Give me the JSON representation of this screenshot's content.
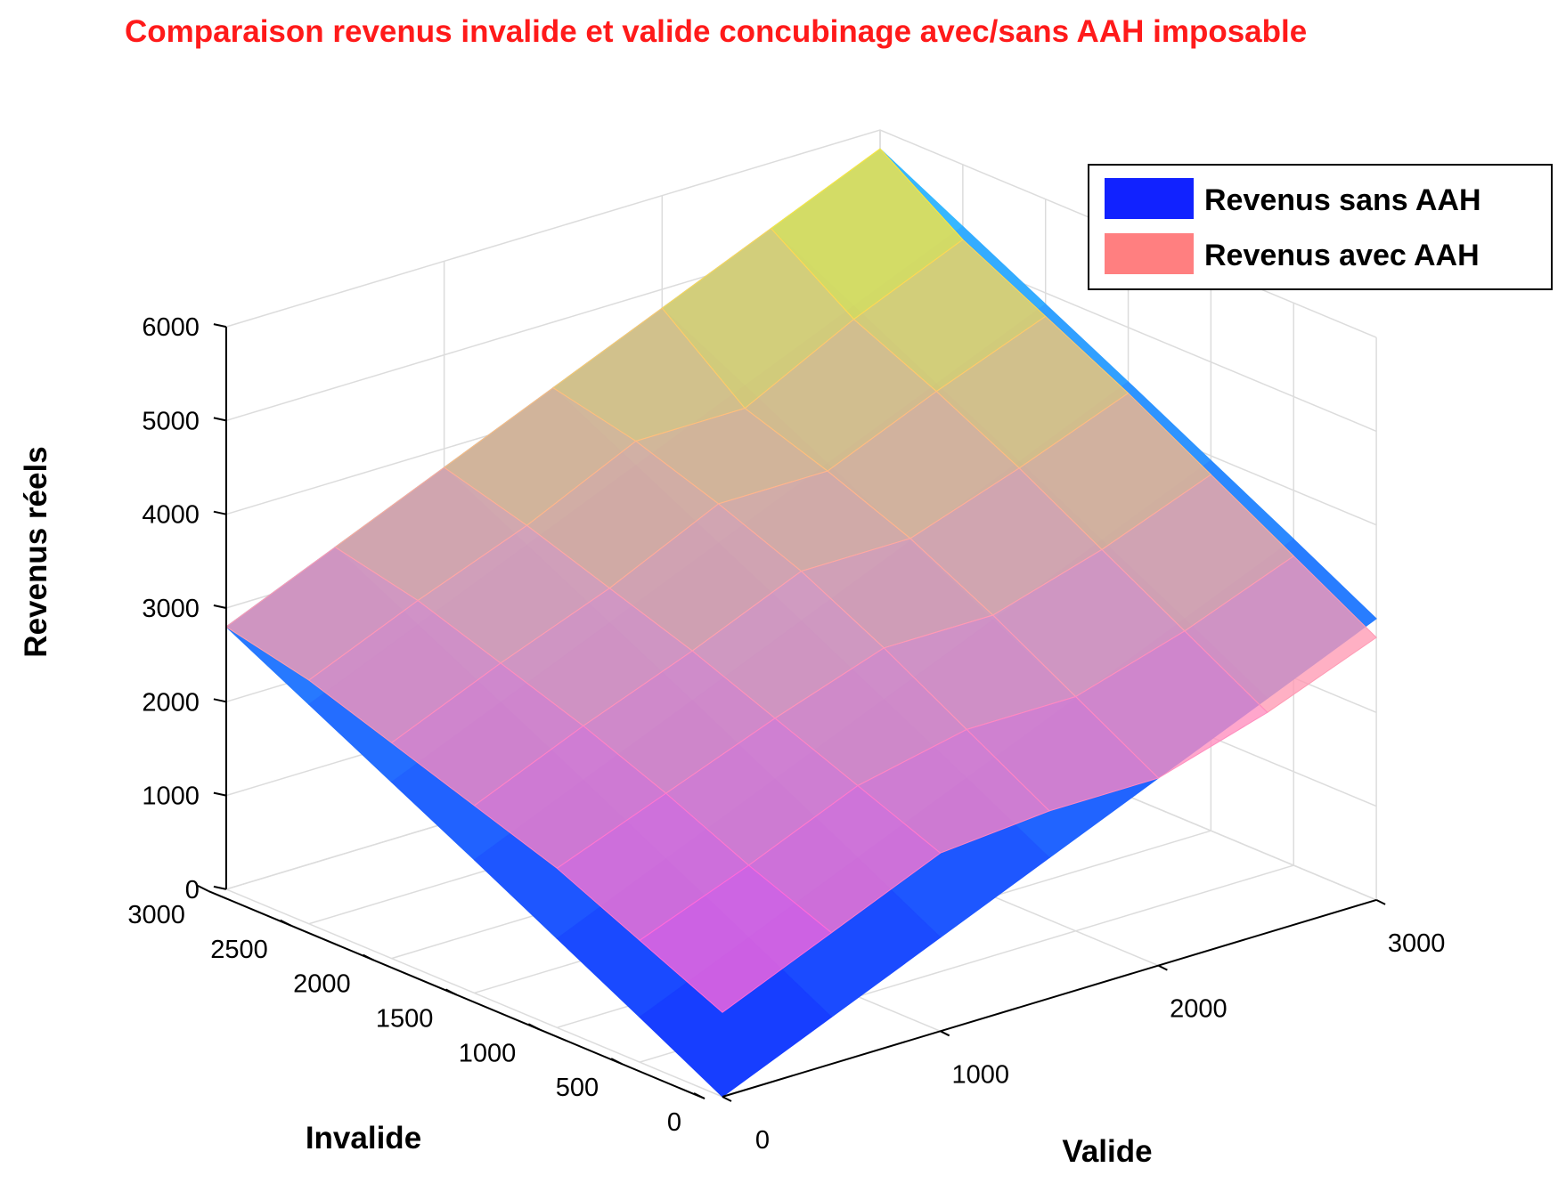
{
  "chart_data": {
    "type": "surface3d",
    "title": "Comparaison revenus invalide et valide concubinage avec/sans AAH imposable",
    "xlabel": "Valide",
    "ylabel": "Invalide",
    "zlabel": "Revenus réels",
    "xlim": [
      0,
      3000
    ],
    "ylim": [
      0,
      3000
    ],
    "zlim": [
      0,
      6000
    ],
    "x_ticks": [
      "0",
      "1000",
      "2000",
      "3000"
    ],
    "y_ticks": [
      "0",
      "500",
      "1000",
      "1500",
      "2000",
      "2500",
      "3000"
    ],
    "z_ticks": [
      "0",
      "1000",
      "2000",
      "3000",
      "4000",
      "5000",
      "6000"
    ],
    "grid": true,
    "legend_position": "top-right",
    "valide": [
      0,
      500,
      1000,
      1500,
      2000,
      2500,
      3000
    ],
    "invalide": [
      0,
      500,
      1000,
      1500,
      2000,
      2500,
      3000
    ],
    "series": [
      {
        "name": "Revenus sans AAH",
        "color": "#1122ff",
        "z": [
          [
            0,
            500,
            1000,
            1500,
            2000,
            2500,
            3000
          ],
          [
            480,
            980,
            1480,
            1980,
            2480,
            2980,
            3480
          ],
          [
            950,
            1450,
            1950,
            2450,
            2950,
            3450,
            3950
          ],
          [
            1420,
            1920,
            2420,
            2920,
            3420,
            3920,
            4420
          ],
          [
            1880,
            2380,
            2880,
            3380,
            3880,
            4380,
            4880
          ],
          [
            2340,
            2840,
            3340,
            3840,
            4340,
            4840,
            5340
          ],
          [
            2800,
            3300,
            3800,
            4300,
            4800,
            5300,
            5800
          ]
        ]
      },
      {
        "name": "Revenus avec AAH",
        "color": "#ff7f80",
        "z": [
          [
            900,
            1400,
            1900,
            2000,
            2000,
            2350,
            2800
          ],
          [
            1300,
            1750,
            2250,
            2500,
            2500,
            2850,
            3300
          ],
          [
            1700,
            2150,
            2600,
            3000,
            3000,
            3350,
            3800
          ],
          [
            2000,
            2500,
            2950,
            3450,
            3450,
            3850,
            4300
          ],
          [
            2300,
            2800,
            3250,
            3800,
            3800,
            4300,
            4750
          ],
          [
            2600,
            3100,
            3550,
            4100,
            4100,
            4700,
            5200
          ],
          [
            2800,
            3300,
            3800,
            4300,
            4800,
            5300,
            5800
          ]
        ]
      }
    ]
  }
}
